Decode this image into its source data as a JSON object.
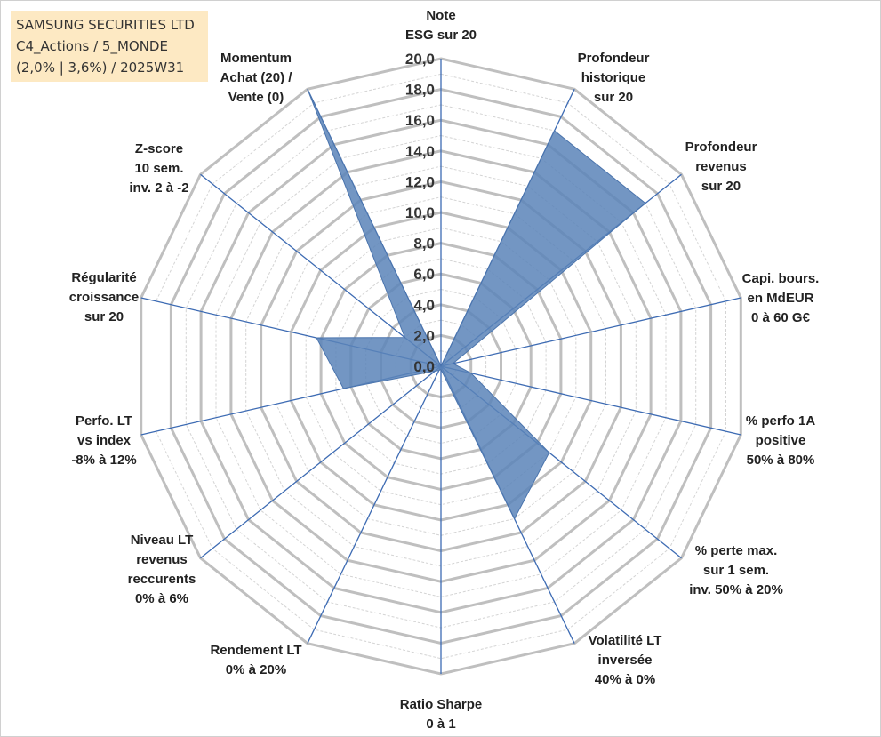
{
  "header": {
    "line1": "SAMSUNG SECURITIES LTD",
    "line2": "C4_Actions / 5_MONDE",
    "line3": "(2,0% | 3,6%) / 2025W31"
  },
  "colors": {
    "fill": "#5b84b8",
    "grid": "#bfbfbf",
    "spoke": "#3d6bb3",
    "header_bg": "#fde9c3"
  },
  "chart_data": {
    "type": "radar",
    "r_max": 20,
    "r_ticks": [
      "0,0",
      "2,0",
      "4,0",
      "6,0",
      "8,0",
      "10,0",
      "12,0",
      "14,0",
      "16,0",
      "18,0",
      "20,0"
    ],
    "axes": [
      {
        "label": [
          "Note",
          "ESG sur 20"
        ],
        "value": 0
      },
      {
        "label": [
          "Profondeur",
          "historique",
          "sur 20"
        ],
        "value": 17.0
      },
      {
        "label": [
          "Profondeur",
          "revenus",
          "sur 20"
        ],
        "value": 17.0
      },
      {
        "label": [
          "Capi. bours.",
          "en MdEUR",
          "0 à 60 G€"
        ],
        "value": 0.8
      },
      {
        "label": [
          "% perfo 1A",
          "positive",
          "50% à 80%"
        ],
        "value": 2.0
      },
      {
        "label": [
          "% perte max.",
          "sur 1 sem.",
          "inv. 50% à 20%"
        ],
        "value": 9.0
      },
      {
        "label": [
          "Volatilité LT",
          "inversée",
          "40% à 0%"
        ],
        "value": 11.0
      },
      {
        "label": [
          "Ratio Sharpe",
          "0 à 1"
        ],
        "value": 0.2
      },
      {
        "label": [
          "Rendement LT",
          "0% à 20%"
        ],
        "value": 0.3
      },
      {
        "label": [
          "Niveau LT",
          "revenus",
          "reccurents",
          "0% à 6%"
        ],
        "value": 0.5
      },
      {
        "label": [
          "Perfo. LT",
          "vs index",
          "-8% à 12%"
        ],
        "value": 6.5
      },
      {
        "label": [
          "Régularité",
          "croissance",
          "sur 20"
        ],
        "value": 8.3
      },
      {
        "label": [
          "Z-score",
          "10 sem.",
          "inv. 2 à -2"
        ],
        "value": 3.0
      },
      {
        "label": [
          "Momentum",
          "Achat (20) /",
          "Vente (0)"
        ],
        "value": 20.0
      }
    ]
  }
}
